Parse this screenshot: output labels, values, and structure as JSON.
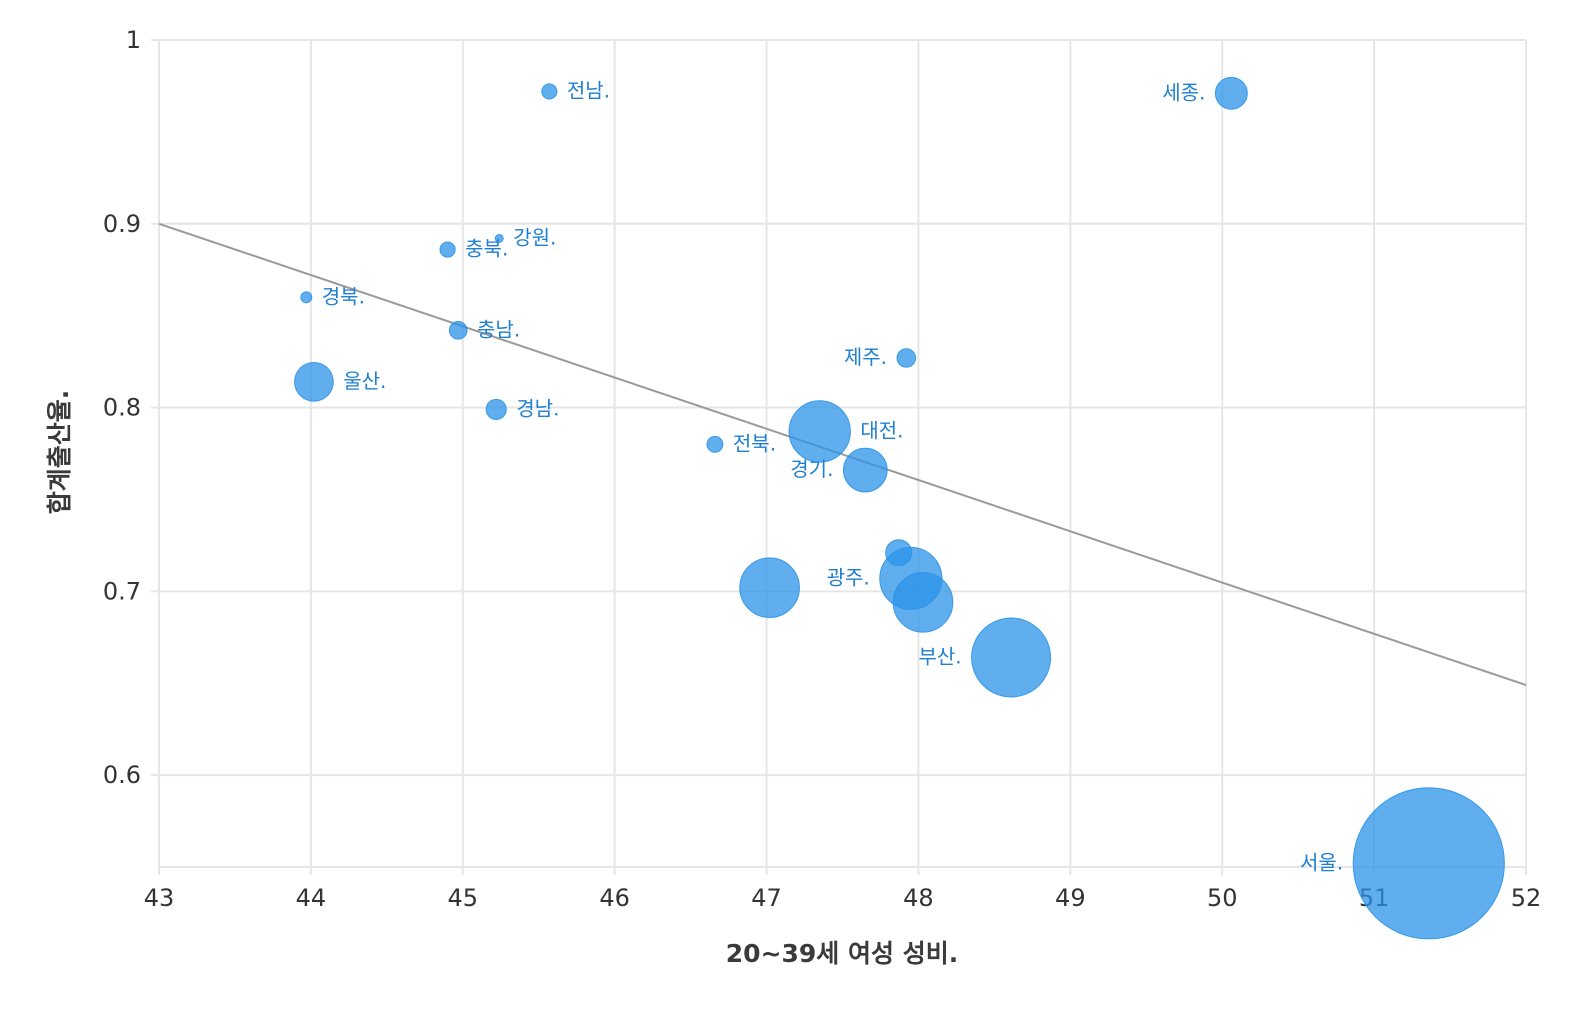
{
  "chart_data": {
    "type": "scatter",
    "xlabel": "20~39세 여성 성비.",
    "ylabel": "합계출산율.",
    "xlim": [
      43,
      52
    ],
    "ylim": [
      0.55,
      1.0
    ],
    "x_ticks": [
      43,
      44,
      45,
      46,
      47,
      48,
      49,
      50,
      51,
      52
    ],
    "y_ticks": [
      0.6,
      0.7,
      0.8,
      0.9,
      1.0
    ],
    "x_tick_labels": [
      "43",
      "44",
      "45",
      "46",
      "47",
      "48",
      "49",
      "50",
      "51",
      "52"
    ],
    "y_tick_labels": [
      "0.6",
      "0.7",
      "0.8",
      "0.9",
      "1"
    ],
    "grid": true,
    "bubble_size": "population (relative)",
    "trendline": {
      "x": [
        43,
        52
      ],
      "y": [
        0.9,
        0.649
      ]
    },
    "points": [
      {
        "label": "전남.",
        "x": 45.57,
        "y": 0.972,
        "size": 1.8,
        "label_side": "right"
      },
      {
        "label": "세종.",
        "x": 50.06,
        "y": 0.971,
        "size": 3.8,
        "label_side": "left"
      },
      {
        "label": "강원.",
        "x": 45.24,
        "y": 0.892,
        "size": 0.5,
        "label_side": "right"
      },
      {
        "label": "충북.",
        "x": 44.9,
        "y": 0.886,
        "size": 1.8,
        "label_side": "right"
      },
      {
        "label": "경북.",
        "x": 43.97,
        "y": 0.86,
        "size": 1.3,
        "label_side": "right"
      },
      {
        "label": "충남.",
        "x": 44.97,
        "y": 0.842,
        "size": 2.1,
        "label_side": "right"
      },
      {
        "label": "제주.",
        "x": 47.92,
        "y": 0.827,
        "size": 2.2,
        "label_side": "left"
      },
      {
        "label": "울산.",
        "x": 44.02,
        "y": 0.814,
        "size": 4.6,
        "label_side": "right"
      },
      {
        "label": "경남.",
        "x": 45.22,
        "y": 0.799,
        "size": 2.4,
        "label_side": "right"
      },
      {
        "label": "대전.",
        "x": 47.35,
        "y": 0.787,
        "size": 7.3,
        "label_side": "right"
      },
      {
        "label": "전북.",
        "x": 46.66,
        "y": 0.78,
        "size": 1.9,
        "label_side": "right"
      },
      {
        "label": "경기.",
        "x": 47.65,
        "y": 0.766,
        "size": 5.2,
        "label_side": "left"
      },
      {
        "label": "",
        "x": 47.87,
        "y": 0.721,
        "size": 3.1,
        "label_side": "none"
      },
      {
        "label": "광주.",
        "x": 47.95,
        "y": 0.707,
        "size": 7.4,
        "label_side": "left"
      },
      {
        "label": "",
        "x": 47.02,
        "y": 0.702,
        "size": 7.1,
        "label_side": "none"
      },
      {
        "label": "",
        "x": 48.03,
        "y": 0.694,
        "size": 7.1,
        "label_side": "none"
      },
      {
        "label": "부산.",
        "x": 48.61,
        "y": 0.664,
        "size": 9.4,
        "label_side": "left"
      },
      {
        "label": "서울.",
        "x": 51.36,
        "y": 0.552,
        "size": 18.0,
        "label_side": "left"
      }
    ]
  }
}
